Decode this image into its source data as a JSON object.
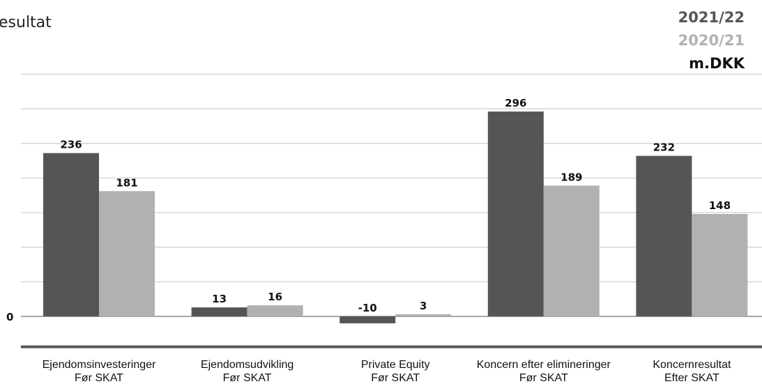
{
  "chart_data": {
    "type": "bar",
    "title": "esultat",
    "unit_label": "m.DKK",
    "zero_label": "0",
    "categories": [
      {
        "line1": "Ejendomsinvesteringer",
        "line2": "Før SKAT"
      },
      {
        "line1": "Ejendomsudvikling",
        "line2": "Før SKAT"
      },
      {
        "line1": "Private Equity",
        "line2": "Før SKAT"
      },
      {
        "line1": "Koncern efter elimineringer",
        "line2": "Før SKAT"
      },
      {
        "line1": "Koncernresultat",
        "line2": "Efter SKAT"
      }
    ],
    "series": [
      {
        "name": "2021/22",
        "color": "#555555",
        "values": [
          236,
          13,
          -10,
          296,
          232
        ]
      },
      {
        "name": "2020/21",
        "color": "#b1b1b1",
        "values": [
          181,
          16,
          3,
          189,
          148
        ]
      }
    ],
    "ylim": [
      -50,
      350
    ],
    "gridlines": true,
    "legend_position": "top-right",
    "label_color": "#111111"
  }
}
